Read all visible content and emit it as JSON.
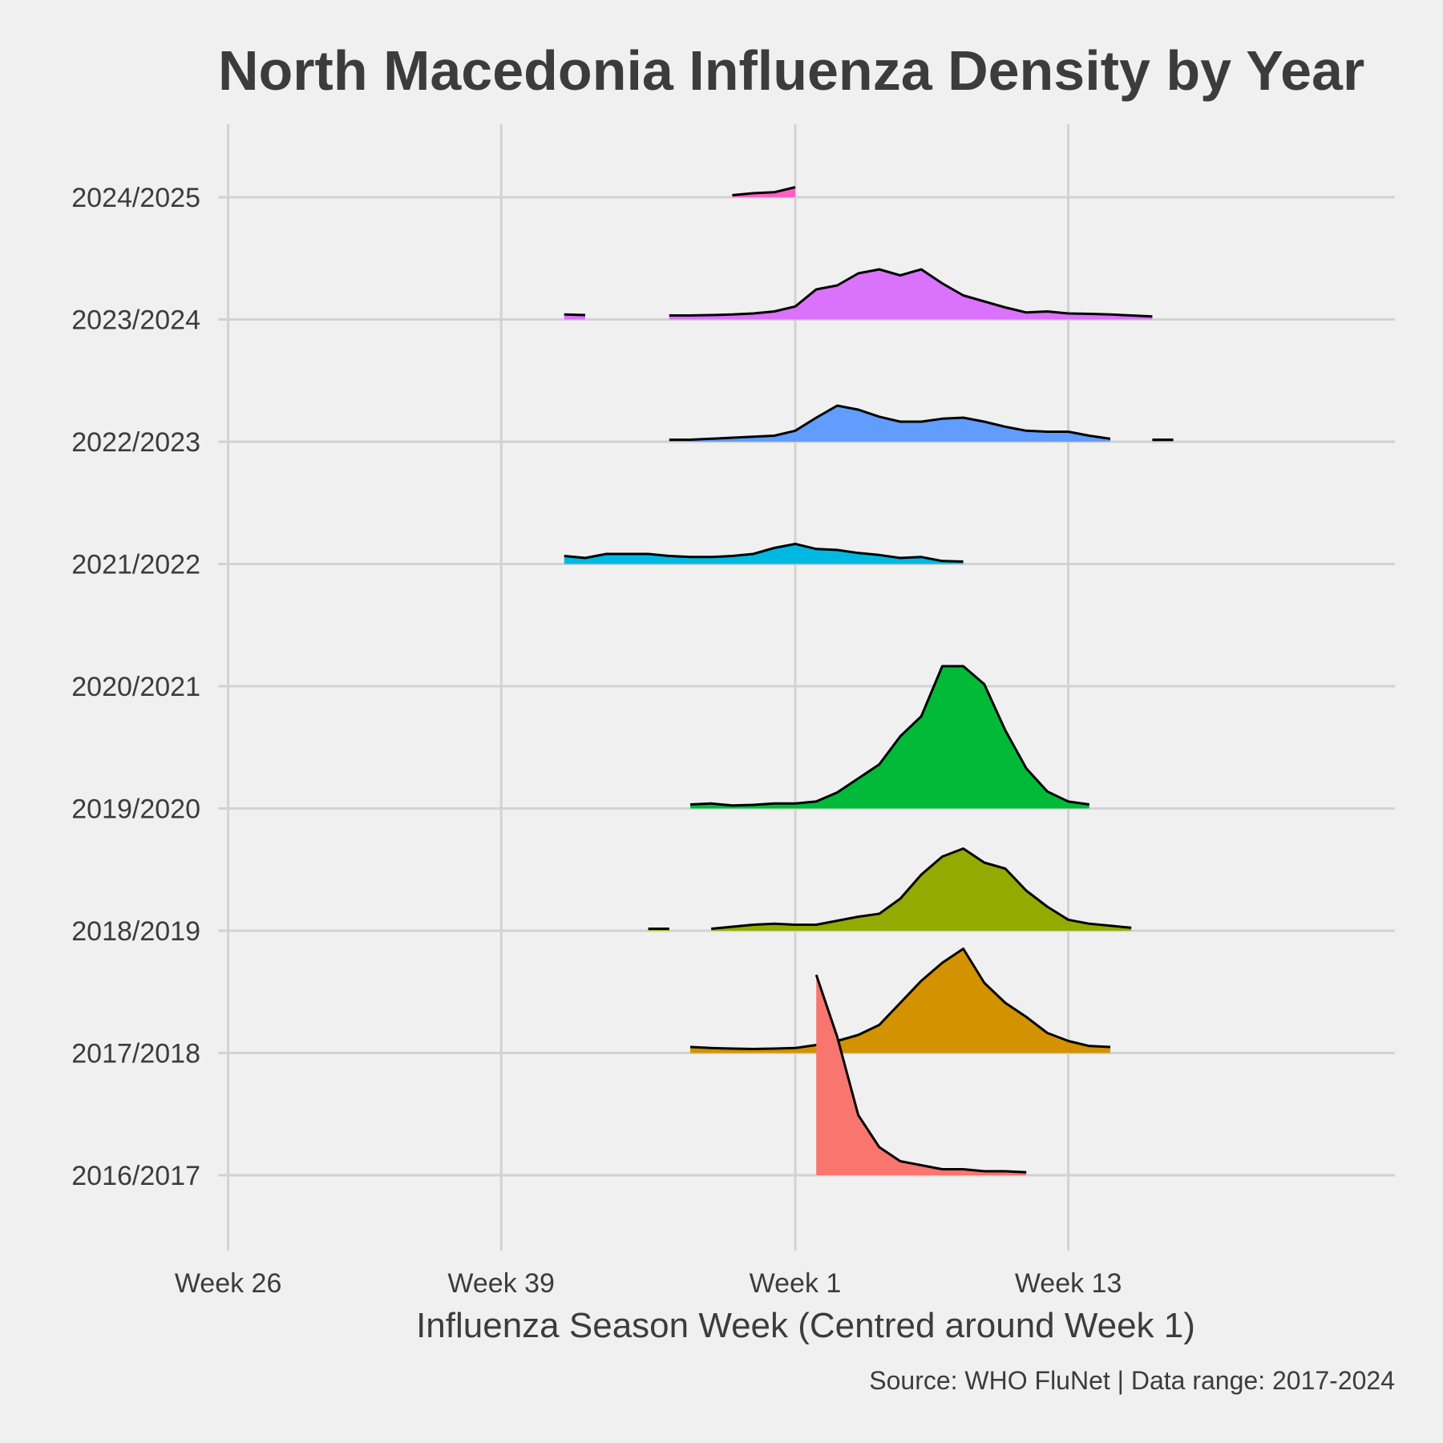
{
  "chart_data": {
    "type": "area",
    "subtype": "ridgeline",
    "title": "North Macedonia Influenza Density by Year",
    "xlabel": "Influenza Season Week (Centred around Week 1)",
    "ylabel": "",
    "caption": "Source: WHO FluNet | Data range: 2017-2024",
    "x_ticks": [
      {
        "label": "Week 26",
        "x": -27
      },
      {
        "label": "Week 39",
        "x": -14
      },
      {
        "label": "Week 1",
        "x": 0
      },
      {
        "label": "Week 13",
        "x": 13
      }
    ],
    "x_range": [
      -30.5,
      28
    ],
    "grid": true,
    "legend": "none",
    "background": "#f0f0f0",
    "series": [
      {
        "name": "2016/2017",
        "color": "#f8766d",
        "points": [
          [
            1,
            1.0
          ],
          [
            2,
            0.69
          ],
          [
            3,
            0.3
          ],
          [
            4,
            0.14
          ],
          [
            5,
            0.07
          ],
          [
            6,
            0.05
          ],
          [
            7,
            0.03
          ],
          [
            8,
            0.03
          ],
          [
            9,
            0.02
          ],
          [
            10,
            0.02
          ],
          [
            11,
            0.015
          ]
        ]
      },
      {
        "name": "2017/2018",
        "color": "#d39200",
        "points": [
          [
            -5,
            0.03
          ],
          [
            -4,
            0.025
          ],
          [
            -3,
            0.022
          ],
          [
            -2,
            0.02
          ],
          [
            -1,
            0.022
          ],
          [
            0,
            0.025
          ],
          [
            1,
            0.04
          ],
          [
            2,
            0.06
          ],
          [
            3,
            0.09
          ],
          [
            4,
            0.14
          ],
          [
            5,
            0.25
          ],
          [
            6,
            0.36
          ],
          [
            7,
            0.45
          ],
          [
            8,
            0.52
          ],
          [
            9,
            0.35
          ],
          [
            10,
            0.25
          ],
          [
            11,
            0.18
          ],
          [
            12,
            0.1
          ],
          [
            13,
            0.06
          ],
          [
            14,
            0.035
          ],
          [
            15,
            0.03
          ]
        ]
      },
      {
        "name": "2018/2019",
        "color": "#93aa00",
        "points": [
          [
            -4,
            0.01
          ],
          [
            -3,
            0.02
          ],
          [
            -2,
            0.03
          ],
          [
            -1,
            0.035
          ],
          [
            0,
            0.03
          ],
          [
            1,
            0.03
          ],
          [
            2,
            0.05
          ],
          [
            3,
            0.07
          ],
          [
            4,
            0.085
          ],
          [
            5,
            0.16
          ],
          [
            6,
            0.28
          ],
          [
            7,
            0.37
          ],
          [
            8,
            0.41
          ],
          [
            9,
            0.34
          ],
          [
            10,
            0.31
          ],
          [
            11,
            0.2
          ],
          [
            12,
            0.12
          ],
          [
            13,
            0.055
          ],
          [
            14,
            0.035
          ],
          [
            15,
            0.025
          ],
          [
            16,
            0.015
          ]
        ],
        "fragments": [
          [
            [
              -7,
              0.01
            ],
            [
              -6,
              0.01
            ]
          ]
        ]
      },
      {
        "name": "2019/2020",
        "color": "#00ba38",
        "points": [
          [
            -5,
            0.02
          ],
          [
            -4,
            0.025
          ],
          [
            -3,
            0.015
          ],
          [
            -2,
            0.018
          ],
          [
            -1,
            0.025
          ],
          [
            0,
            0.025
          ],
          [
            1,
            0.035
          ],
          [
            2,
            0.08
          ],
          [
            3,
            0.15
          ],
          [
            4,
            0.22
          ],
          [
            5,
            0.36
          ],
          [
            6,
            0.46
          ],
          [
            7,
            0.71
          ],
          [
            8,
            0.71
          ],
          [
            9,
            0.62
          ],
          [
            10,
            0.39
          ],
          [
            11,
            0.2
          ],
          [
            12,
            0.085
          ],
          [
            13,
            0.035
          ],
          [
            14,
            0.02
          ]
        ]
      },
      {
        "name": "2020/2021",
        "color": "#00c19f",
        "points": []
      },
      {
        "name": "2021/2022",
        "color": "#00b9e3",
        "points": [
          [
            -11,
            0.04
          ],
          [
            -10,
            0.03
          ],
          [
            -9,
            0.05
          ],
          [
            -8,
            0.05
          ],
          [
            -7,
            0.05
          ],
          [
            -6,
            0.04
          ],
          [
            -5,
            0.035
          ],
          [
            -4,
            0.035
          ],
          [
            -3,
            0.04
          ],
          [
            -2,
            0.05
          ],
          [
            -1,
            0.08
          ],
          [
            0,
            0.1
          ],
          [
            1,
            0.075
          ],
          [
            2,
            0.07
          ],
          [
            3,
            0.055
          ],
          [
            4,
            0.045
          ],
          [
            5,
            0.03
          ],
          [
            6,
            0.035
          ],
          [
            7,
            0.015
          ],
          [
            8,
            0.012
          ]
        ]
      },
      {
        "name": "2022/2023",
        "color": "#619cff",
        "points": [
          [
            -6,
            0.01
          ],
          [
            -5,
            0.01
          ],
          [
            -4,
            0.015
          ],
          [
            -3,
            0.02
          ],
          [
            -2,
            0.025
          ],
          [
            -1,
            0.03
          ],
          [
            0,
            0.055
          ],
          [
            1,
            0.12
          ],
          [
            2,
            0.18
          ],
          [
            3,
            0.16
          ],
          [
            4,
            0.125
          ],
          [
            5,
            0.1
          ],
          [
            6,
            0.1
          ],
          [
            7,
            0.115
          ],
          [
            8,
            0.12
          ],
          [
            9,
            0.1
          ],
          [
            10,
            0.075
          ],
          [
            11,
            0.055
          ],
          [
            12,
            0.05
          ],
          [
            13,
            0.05
          ],
          [
            14,
            0.03
          ],
          [
            15,
            0.015
          ]
        ],
        "fragments": [
          [
            [
              17,
              0.01
            ],
            [
              18,
              0.01
            ]
          ]
        ]
      },
      {
        "name": "2023/2024",
        "color": "#db72fb",
        "points": [
          [
            -6,
            0.02
          ],
          [
            -5,
            0.02
          ],
          [
            -4,
            0.022
          ],
          [
            -3,
            0.025
          ],
          [
            -2,
            0.03
          ],
          [
            -1,
            0.04
          ],
          [
            0,
            0.065
          ],
          [
            1,
            0.15
          ],
          [
            2,
            0.17
          ],
          [
            3,
            0.23
          ],
          [
            4,
            0.25
          ],
          [
            5,
            0.22
          ],
          [
            6,
            0.25
          ],
          [
            7,
            0.18
          ],
          [
            8,
            0.12
          ],
          [
            9,
            0.09
          ],
          [
            10,
            0.06
          ],
          [
            11,
            0.035
          ],
          [
            12,
            0.04
          ],
          [
            13,
            0.03
          ],
          [
            14,
            0.028
          ],
          [
            15,
            0.025
          ],
          [
            16,
            0.02
          ],
          [
            17,
            0.015
          ]
        ],
        "fragments": [
          [
            [
              -11,
              0.025
            ],
            [
              -10,
              0.022
            ]
          ]
        ]
      },
      {
        "name": "2024/2025",
        "color": "#ff61c3",
        "points": [
          [
            -3,
            0.01
          ],
          [
            -2,
            0.02
          ],
          [
            -1,
            0.025
          ],
          [
            0,
            0.05
          ]
        ]
      }
    ]
  }
}
